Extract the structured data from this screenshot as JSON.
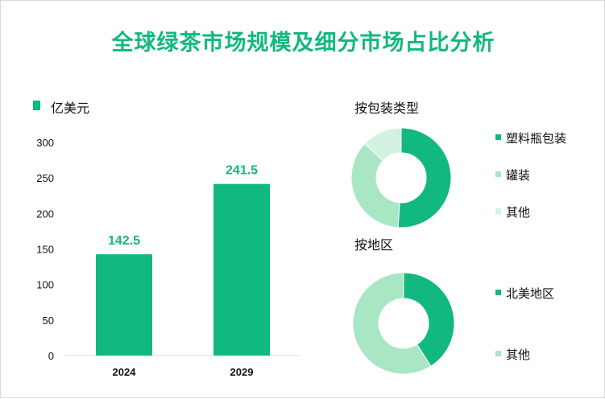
{
  "title": "全球绿茶市场规模及细分市场占比分析",
  "colors": {
    "accent": "#11b87f",
    "light_green": "#a8e6c4",
    "pale_green": "#d3f2e1",
    "axis": "#d9d9d9"
  },
  "chart_data": [
    {
      "type": "bar",
      "unit_legend": "亿美元",
      "categories": [
        "2024",
        "2029"
      ],
      "values": [
        142.5,
        241.5
      ],
      "value_labels": [
        "142.5",
        "241.5"
      ],
      "ylim": [
        0,
        300
      ],
      "yticks": [
        0,
        50,
        100,
        150,
        200,
        250,
        300
      ],
      "grid": false,
      "color": "#11b87f"
    },
    {
      "type": "pie",
      "style": "donut",
      "title": "按包装类型",
      "labels": [
        "塑料瓶包装",
        "罐装",
        "其他"
      ],
      "values": [
        0.51,
        0.36,
        0.13
      ],
      "colors": [
        "#11b87f",
        "#a8e6c4",
        "#d3f2e1"
      ]
    },
    {
      "type": "pie",
      "style": "donut",
      "title": "按地区",
      "labels": [
        "北美地区",
        "其他"
      ],
      "values": [
        0.41,
        0.59
      ],
      "colors": [
        "#11b87f",
        "#a8e6c4"
      ]
    }
  ]
}
